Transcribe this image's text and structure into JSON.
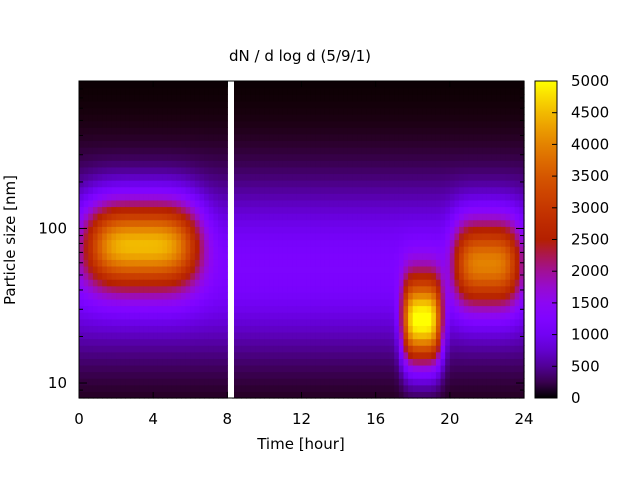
{
  "chart_data": {
    "type": "heatmap",
    "title": "dN / d log d (5/9/1)",
    "xlabel": "Time [hour]",
    "ylabel": "Particle size [nm]",
    "xlim": [
      0,
      24
    ],
    "ylim": [
      8,
      900
    ],
    "y_scale": "log",
    "x_ticks": [
      0,
      4,
      8,
      12,
      16,
      20,
      24
    ],
    "x_tick_labels": [
      "0",
      "4",
      "8",
      "12",
      "16",
      "20",
      "24"
    ],
    "y_ticks": [
      10,
      100
    ],
    "y_tick_labels": [
      "10",
      "100"
    ],
    "colorbar": {
      "range": [
        0,
        5000
      ],
      "ticks": [
        0,
        500,
        1000,
        1500,
        2000,
        2500,
        3000,
        3500,
        4000,
        4500,
        5000
      ],
      "tick_labels": [
        "0",
        "500",
        "1000",
        "1500",
        "2000",
        "2500",
        "3000",
        "3500",
        "4000",
        "4500",
        "5000"
      ],
      "colormap": "gnuplot-black-purple-red-yellow"
    },
    "data_gap_hours": [
      8.0,
      8.3
    ],
    "modes": [
      {
        "t_start": 0.0,
        "t_end": 6.8,
        "center_nm": 80,
        "peak": 3400
      },
      {
        "t_start": 17.3,
        "t_end": 19.7,
        "center_nm": 25,
        "peak": 4300
      },
      {
        "t_start": 20.0,
        "t_end": 24.0,
        "center_nm": 60,
        "peak": 2800
      }
    ],
    "background_level": 1200
  }
}
